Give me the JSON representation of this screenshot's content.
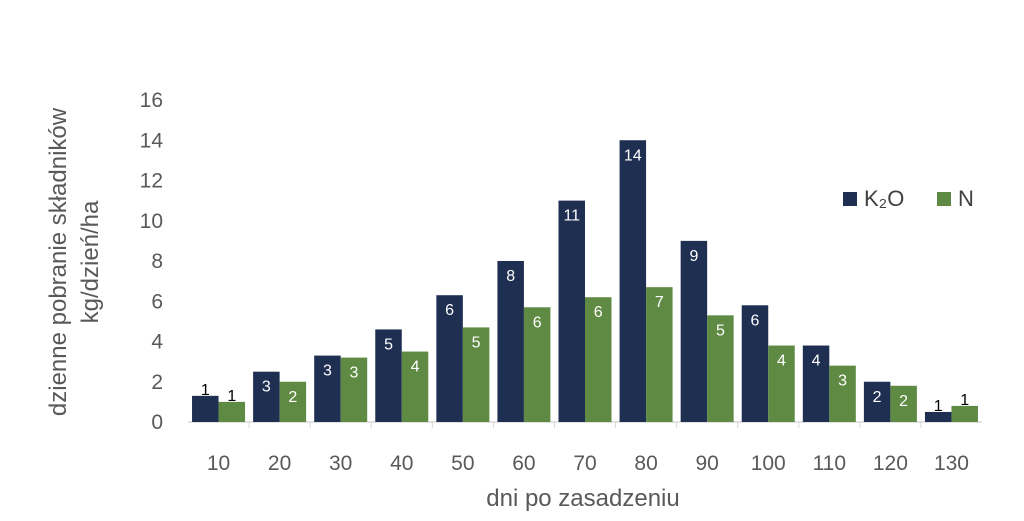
{
  "chart_data": {
    "type": "bar",
    "categories": [
      "10",
      "20",
      "30",
      "40",
      "50",
      "60",
      "70",
      "80",
      "90",
      "100",
      "110",
      "120",
      "130"
    ],
    "series": [
      {
        "name": "K₂O",
        "color": "#1f2f52",
        "values": [
          1.3,
          2.5,
          3.3,
          4.6,
          6.3,
          8.0,
          11.0,
          14.0,
          9.0,
          5.8,
          3.8,
          2.0,
          0.5
        ],
        "labels": [
          "1",
          "3",
          "3",
          "5",
          "6",
          "8",
          "11",
          "14",
          "9",
          "6",
          "4",
          "2",
          "1"
        ]
      },
      {
        "name": "N",
        "color": "#5e8a44",
        "values": [
          1.0,
          2.0,
          3.2,
          3.5,
          4.7,
          5.7,
          6.2,
          6.7,
          5.3,
          3.8,
          2.8,
          1.8,
          0.8
        ],
        "labels": [
          "1",
          "2",
          "3",
          "4",
          "5",
          "6",
          "6",
          "7",
          "5",
          "4",
          "3",
          "2",
          "1"
        ]
      }
    ],
    "yticks": [
      "0",
      "2",
      "4",
      "6",
      "8",
      "10",
      "12",
      "14",
      "16"
    ],
    "ylim": [
      0,
      16
    ],
    "xlabel": "dni po zasadzeniu",
    "ylabel": [
      "dzienne pobranie składników",
      "kg/dzień/ha"
    ],
    "legend_position": "right",
    "grid": false
  }
}
